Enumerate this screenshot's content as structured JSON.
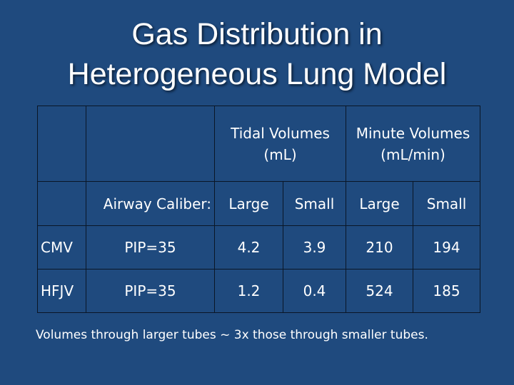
{
  "title": {
    "line1": "Gas Distribution in",
    "line2": "Heterogeneous Lung Model"
  },
  "table": {
    "tidal_header_1": "Tidal Volumes",
    "tidal_header_2": "(mL)",
    "minute_header_1": "Minute Volumes",
    "minute_header_2": "(mL/min)",
    "caliber_label": "Airway Caliber:",
    "caliber_values": [
      "Large",
      "Small",
      "Large",
      "Small"
    ],
    "rows": [
      {
        "mode": "CMV",
        "pip": "PIP=35",
        "tidal_large": "4.2",
        "tidal_small": "3.9",
        "minute_large": "210",
        "minute_small": "194"
      },
      {
        "mode": "HFJV",
        "pip": "PIP=35",
        "tidal_large": "1.2",
        "tidal_small": "0.4",
        "minute_large": "524",
        "minute_small": "185"
      }
    ]
  },
  "footnote": "Volumes through larger tubes ~ 3x those through smaller tubes.",
  "colors": {
    "background": "#1f4a7e",
    "text": "#ffffff",
    "grid": "#0a1626"
  }
}
